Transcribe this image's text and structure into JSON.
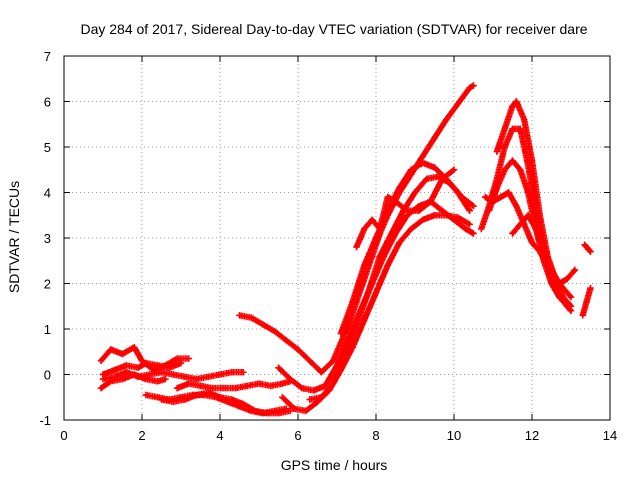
{
  "chart_data": {
    "type": "scatter",
    "title": "Day 284 of 2017, Sidereal Day-to-day VTEC variation (SDTVAR) for receiver dare",
    "xlabel": "GPS time / hours",
    "ylabel": "SDTVAR / TECUs",
    "xlim": [
      0,
      14
    ],
    "ylim": [
      -1,
      7
    ],
    "xticks": [
      0,
      2,
      4,
      6,
      8,
      10,
      12,
      14
    ],
    "yticks": [
      -1,
      0,
      1,
      2,
      3,
      4,
      5,
      6,
      7
    ],
    "grid": true,
    "marker": "+",
    "color": "#ff0000",
    "series": [
      {
        "name": "s1",
        "x": [
          0.95,
          1.2,
          1.5,
          1.8,
          2.0,
          2.3,
          2.6,
          2.9,
          3.2
        ],
        "y": [
          0.3,
          0.55,
          0.45,
          0.6,
          0.3,
          0.1,
          0.2,
          0.35,
          0.35
        ]
      },
      {
        "name": "s2",
        "x": [
          0.95,
          1.2,
          1.5,
          1.8,
          2.1,
          2.4,
          2.6
        ],
        "y": [
          -0.3,
          -0.15,
          -0.1,
          0.0,
          -0.1,
          -0.15,
          -0.1
        ]
      },
      {
        "name": "s3",
        "x": [
          1.0,
          1.3,
          1.6,
          1.9,
          2.2,
          2.5,
          2.8,
          3.1,
          3.4,
          3.7,
          4.0,
          4.3,
          4.6
        ],
        "y": [
          -0.1,
          -0.05,
          0.05,
          -0.05,
          0.0,
          0.05,
          0.0,
          -0.05,
          -0.1,
          -0.05,
          0.0,
          0.05,
          0.05
        ]
      },
      {
        "name": "s4",
        "x": [
          1.0,
          1.3,
          1.6,
          1.9,
          2.1,
          2.4,
          2.7,
          3.0
        ],
        "y": [
          0.0,
          0.1,
          0.2,
          0.15,
          0.25,
          0.2,
          0.15,
          0.25
        ]
      },
      {
        "name": "s5",
        "x": [
          2.1,
          2.4,
          2.7,
          3.0,
          3.3,
          3.6,
          3.9,
          4.2,
          4.5,
          4.8,
          5.1,
          5.4,
          5.7
        ],
        "y": [
          -0.45,
          -0.5,
          -0.55,
          -0.5,
          -0.45,
          -0.45,
          -0.5,
          -0.6,
          -0.7,
          -0.8,
          -0.85,
          -0.8,
          -0.75
        ]
      },
      {
        "name": "s6",
        "x": [
          2.5,
          2.8,
          3.1,
          3.4,
          3.7,
          4.0,
          4.3,
          4.6,
          4.9,
          5.2,
          5.5,
          5.8
        ],
        "y": [
          -0.55,
          -0.6,
          -0.55,
          -0.45,
          -0.4,
          -0.5,
          -0.55,
          -0.65,
          -0.8,
          -0.85,
          -0.85,
          -0.8
        ]
      },
      {
        "name": "s7",
        "x": [
          2.9,
          3.2,
          3.5,
          3.8,
          4.1,
          4.4,
          4.7,
          5.0,
          5.3,
          5.6,
          5.8
        ],
        "y": [
          -0.3,
          -0.2,
          -0.25,
          -0.3,
          -0.3,
          -0.3,
          -0.25,
          -0.2,
          -0.25,
          -0.2,
          -0.15
        ]
      },
      {
        "name": "s8",
        "x": [
          4.5,
          4.8,
          5.1,
          5.4,
          5.7,
          6.0,
          6.3,
          6.6,
          6.9,
          7.1,
          7.3,
          7.5,
          7.7,
          7.9,
          8.1,
          8.3,
          8.6,
          8.9,
          9.2,
          9.5,
          9.8,
          10.1,
          10.4,
          10.5
        ],
        "y": [
          1.3,
          1.25,
          1.1,
          0.95,
          0.75,
          0.55,
          0.3,
          0.05,
          0.3,
          0.7,
          1.1,
          1.6,
          2.1,
          2.6,
          3.1,
          3.5,
          4.0,
          4.4,
          4.8,
          5.2,
          5.6,
          5.95,
          6.3,
          6.35
        ]
      },
      {
        "name": "s9",
        "x": [
          5.5,
          5.8,
          6.1,
          6.4,
          6.7,
          7.0,
          7.3,
          7.6,
          7.9,
          8.2,
          8.5,
          8.8,
          9.1,
          9.4,
          9.7,
          10.0,
          10.3,
          10.5
        ],
        "y": [
          0.15,
          -0.1,
          -0.3,
          -0.35,
          -0.25,
          0.2,
          0.8,
          1.4,
          2.0,
          2.6,
          3.1,
          3.5,
          3.7,
          3.8,
          3.6,
          3.4,
          3.2,
          3.1
        ]
      },
      {
        "name": "s10",
        "x": [
          5.6,
          5.9,
          6.2,
          6.5,
          6.8,
          7.1,
          7.4,
          7.7,
          8.0,
          8.3,
          8.6,
          8.9,
          9.2,
          9.5,
          9.8,
          10.1,
          10.4
        ],
        "y": [
          -0.5,
          -0.75,
          -0.8,
          -0.6,
          -0.35,
          0.1,
          0.6,
          1.2,
          1.8,
          2.4,
          2.9,
          3.2,
          3.4,
          3.5,
          3.5,
          3.45,
          3.3
        ]
      },
      {
        "name": "s11",
        "x": [
          6.3,
          6.6,
          6.9,
          7.2,
          7.5,
          7.8,
          8.1,
          8.4,
          8.7,
          9.0,
          9.3,
          9.6,
          9.9,
          10.2,
          10.5
        ],
        "y": [
          -0.55,
          -0.5,
          -0.2,
          0.4,
          1.1,
          1.8,
          2.6,
          3.1,
          3.6,
          4.0,
          4.3,
          4.35,
          4.2,
          3.9,
          3.7
        ]
      },
      {
        "name": "s12",
        "x": [
          7.1,
          7.4,
          7.7,
          8.0,
          8.3,
          8.6,
          8.9,
          9.2,
          9.5,
          9.8,
          10.1,
          10.4
        ],
        "y": [
          0.9,
          1.6,
          2.4,
          3.0,
          3.6,
          4.1,
          4.5,
          4.65,
          4.55,
          4.3,
          4.0,
          3.6
        ]
      },
      {
        "name": "s13",
        "x": [
          7.5,
          7.7,
          7.9,
          8.1,
          8.3,
          8.5,
          8.8,
          9.1,
          9.4,
          9.7,
          10.0
        ],
        "y": [
          2.8,
          3.2,
          3.4,
          3.2,
          3.9,
          3.8,
          3.6,
          3.6,
          3.8,
          4.3,
          4.5
        ]
      },
      {
        "name": "s14",
        "x": [
          10.7,
          10.9,
          11.1,
          11.3,
          11.5,
          11.7,
          11.9,
          12.1,
          12.3,
          12.5,
          12.7,
          12.9
        ],
        "y": [
          3.2,
          3.7,
          4.3,
          5.0,
          5.4,
          5.4,
          4.6,
          3.6,
          2.8,
          2.2,
          1.8,
          1.5
        ]
      },
      {
        "name": "s15",
        "x": [
          11.1,
          11.3,
          11.5,
          11.6,
          11.8,
          12.0,
          12.2,
          12.4,
          12.6,
          12.8,
          13.0
        ],
        "y": [
          4.9,
          5.4,
          5.9,
          6.0,
          5.6,
          4.7,
          3.5,
          2.6,
          2.1,
          1.7,
          1.5
        ]
      },
      {
        "name": "s16",
        "x": [
          10.9,
          11.1,
          11.3,
          11.5,
          11.7,
          11.9,
          12.1,
          12.3,
          12.5,
          12.7,
          12.9,
          13.0
        ],
        "y": [
          3.6,
          4.1,
          4.5,
          4.7,
          4.5,
          4.0,
          3.2,
          2.5,
          2.0,
          1.7,
          1.5,
          1.4
        ]
      },
      {
        "name": "s17",
        "x": [
          10.8,
          11.0,
          11.2,
          11.4,
          11.6,
          11.8,
          12.0,
          12.2,
          12.4,
          12.6,
          12.8,
          13.0
        ],
        "y": [
          3.9,
          3.8,
          3.9,
          4.0,
          3.7,
          3.3,
          2.9,
          2.7,
          2.4,
          2.1,
          1.9,
          1.7
        ]
      },
      {
        "name": "s18",
        "x": [
          11.5,
          11.7,
          11.9,
          12.1,
          12.3,
          12.5,
          12.7,
          12.9,
          13.1
        ],
        "y": [
          3.1,
          3.3,
          3.5,
          3.2,
          2.7,
          2.3,
          2.0,
          2.1,
          2.3
        ]
      },
      {
        "name": "s19",
        "x": [
          13.3,
          13.4,
          13.5
        ],
        "y": [
          1.3,
          1.6,
          1.9
        ]
      },
      {
        "name": "s20",
        "x": [
          13.35,
          13.45,
          13.5
        ],
        "y": [
          2.85,
          2.75,
          2.7
        ]
      }
    ]
  }
}
